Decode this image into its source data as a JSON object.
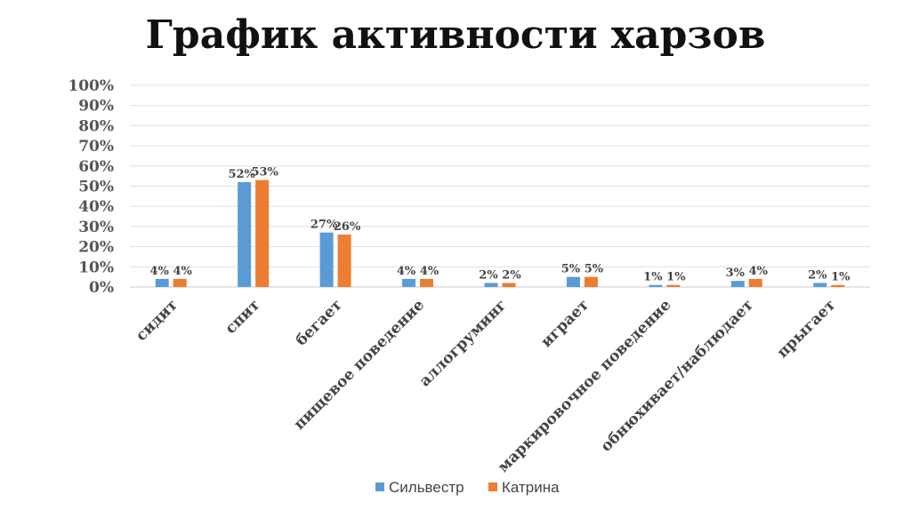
{
  "chart_data": {
    "type": "bar",
    "title": "График активности харзов",
    "categories": [
      "сидит",
      "спит",
      "бегает",
      "пищевое поведение",
      "аллогруминг",
      "играет",
      "маркировочное поведение",
      "обнюхивает/наблюдает",
      "прыгает"
    ],
    "series": [
      {
        "name": "Сильвестр",
        "color": "#5B9BD5",
        "values": [
          4,
          52,
          27,
          4,
          2,
          5,
          1,
          3,
          2
        ]
      },
      {
        "name": "Катрина",
        "color": "#ED7D31",
        "values": [
          4,
          53,
          26,
          4,
          2,
          5,
          1,
          4,
          1
        ]
      }
    ],
    "ylim": [
      0,
      100
    ],
    "yticks": [
      "0%",
      "10%",
      "20%",
      "30%",
      "40%",
      "50%",
      "60%",
      "70%",
      "80%",
      "90%",
      "100%"
    ],
    "grid": true,
    "legend_position": "bottom"
  }
}
